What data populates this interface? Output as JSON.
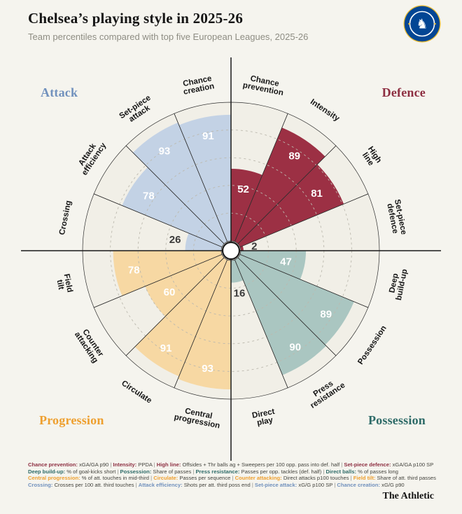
{
  "header": {
    "title": "Chelsea’s playing style in 2025-26",
    "subtitle": "Team percentiles compared with top five European Leagues, 2025-26"
  },
  "quadrants": {
    "attack": {
      "label": "Attack",
      "heading_color": "#7191bd",
      "fill": "#c3d2e5"
    },
    "defence": {
      "label": "Defence",
      "heading_color": "#8e2f42",
      "fill": "#9c3044"
    },
    "progression": {
      "label": "Progression",
      "heading_color": "#ee9f2e",
      "fill": "#f7d8a3"
    },
    "possession": {
      "label": "Possession",
      "heading_color": "#2e6b68",
      "fill": "#aac6c1"
    }
  },
  "chart_data": {
    "type": "bar",
    "variant": "circular-pizza-percentile",
    "ylim": [
      0,
      100
    ],
    "gridlines": [
      20,
      40,
      60,
      80
    ],
    "start_angle_deg": 0,
    "direction": "clockwise",
    "slices": [
      {
        "label": "Chance prevention",
        "lines": [
          "Chance",
          "prevention"
        ],
        "value": 52,
        "group": "defence"
      },
      {
        "label": "Intensity",
        "lines": [
          "Intensity"
        ],
        "value": 89,
        "group": "defence"
      },
      {
        "label": "High line",
        "lines": [
          "High",
          "line"
        ],
        "value": 81,
        "group": "defence"
      },
      {
        "label": "Set-piece defence",
        "lines": [
          "Set-piece",
          "defence"
        ],
        "value": 2,
        "group": "defence"
      },
      {
        "label": "Deep build-up",
        "lines": [
          "Deep",
          "build-up"
        ],
        "value": 47,
        "group": "possession"
      },
      {
        "label": "Possession",
        "lines": [
          "Possession"
        ],
        "value": 89,
        "group": "possession"
      },
      {
        "label": "Press resistance",
        "lines": [
          "Press",
          "resistance"
        ],
        "value": 90,
        "group": "possession"
      },
      {
        "label": "Direct play",
        "lines": [
          "Direct",
          "play"
        ],
        "value": 16,
        "group": "possession"
      },
      {
        "label": "Central progression",
        "lines": [
          "Central",
          "progression"
        ],
        "value": 93,
        "group": "progression"
      },
      {
        "label": "Circulate",
        "lines": [
          "Circulate"
        ],
        "value": 91,
        "group": "progression"
      },
      {
        "label": "Counter attacking",
        "lines": [
          "Counter",
          "attacking"
        ],
        "value": 60,
        "group": "progression"
      },
      {
        "label": "Field tilt",
        "lines": [
          "Field",
          "tilt"
        ],
        "value": 78,
        "group": "progression"
      },
      {
        "label": "Crossing",
        "lines": [
          "Crossing"
        ],
        "value": 26,
        "group": "attack"
      },
      {
        "label": "Attack efficiency",
        "lines": [
          "Attack",
          "efficiency"
        ],
        "value": 78,
        "group": "attack"
      },
      {
        "label": "Set-piece attack",
        "lines": [
          "Set-piece",
          "attack"
        ],
        "value": 93,
        "group": "attack"
      },
      {
        "label": "Chance creation",
        "lines": [
          "Chance",
          "creation"
        ],
        "value": 91,
        "group": "attack"
      }
    ]
  },
  "footer": {
    "brand": "The Athletic",
    "lines": [
      {
        "group": "defence",
        "items": [
          {
            "term": "Chance prevention:",
            "desc": "xGA/GA p90"
          },
          {
            "term": "Intensity:",
            "desc": "PPDA"
          },
          {
            "term": "High line:",
            "desc": "Offsides + Thr balls ag + Sweepers per 100 opp. pass into def. half"
          },
          {
            "term": "Set-piece defence:",
            "desc": "xGA/GA p100 SP"
          }
        ]
      },
      {
        "group": "possession",
        "items": [
          {
            "term": "Deep build-up:",
            "desc": "% of goal-kicks short"
          },
          {
            "term": "Possession:",
            "desc": "Share of passes"
          },
          {
            "term": "Press resistance:",
            "desc": "Passes per opp. tackles (def. half)"
          },
          {
            "term": "Direct balls:",
            "desc": "% of passes long"
          }
        ]
      },
      {
        "group": "progression",
        "items": [
          {
            "term": "Central progression:",
            "desc": "% of att. touches in mid-third"
          },
          {
            "term": "Circulate:",
            "desc": "Passes per sequence"
          },
          {
            "term": "Counter attacking:",
            "desc": "Direct attacks p100 touches"
          },
          {
            "term": "Field tilt:",
            "desc": "Share of att. third passes"
          }
        ]
      },
      {
        "group": "attack",
        "items": [
          {
            "term": "Crossing:",
            "desc": "Crosses per 100 att. third touches"
          },
          {
            "term": "Attack efficiency:",
            "desc": "Shots per att. third poss end"
          },
          {
            "term": "Set-piece attack:",
            "desc": "xG/G p100 SP"
          },
          {
            "term": "Chance creation:",
            "desc": "xG/G p90"
          }
        ]
      }
    ]
  }
}
